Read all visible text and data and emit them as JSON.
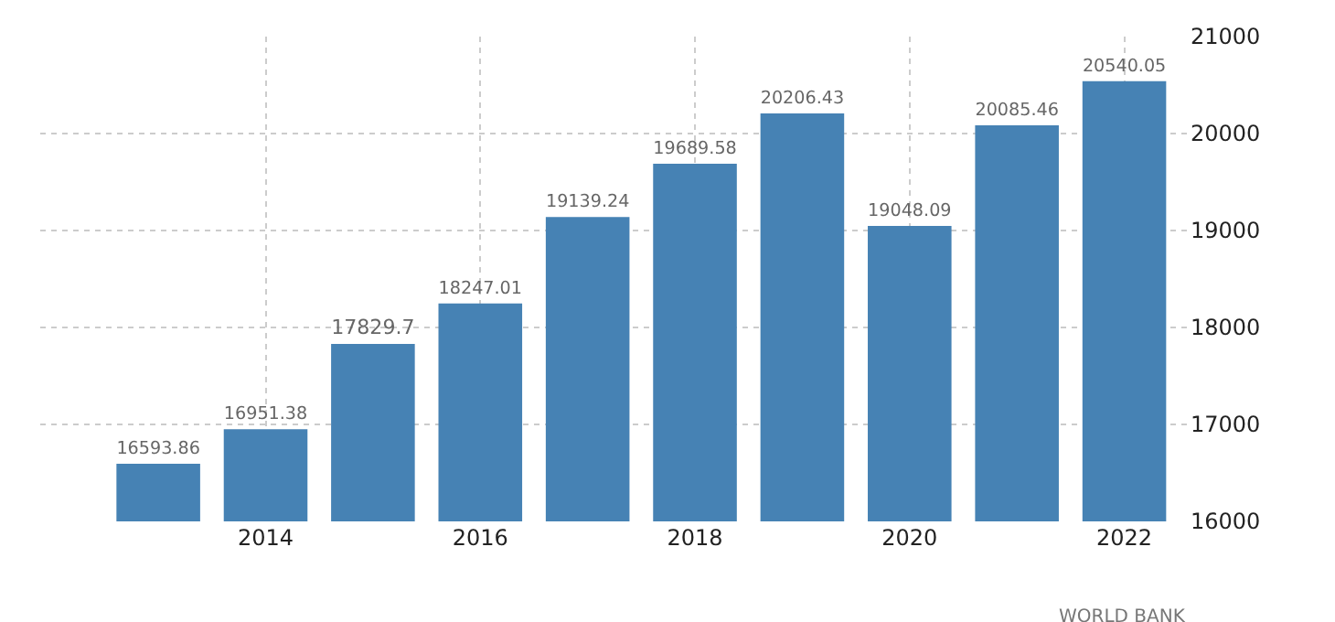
{
  "chart_data": {
    "type": "bar",
    "x": [
      2013,
      2014,
      2015,
      2016,
      2017,
      2018,
      2019,
      2020,
      2021,
      2022
    ],
    "values": [
      16593.86,
      16951.38,
      17829.7,
      18247.01,
      19139.24,
      19689.58,
      20206.43,
      19048.09,
      20085.46,
      20540.05
    ],
    "color": "#4682b4",
    "data_labels": true,
    "xlim": [
      2011.9,
      2022.6
    ],
    "xticks": [
      2014,
      2016,
      2018,
      2020,
      2022
    ],
    "ylim": [
      16000,
      21000
    ],
    "yticks": [
      16000,
      17000,
      18000,
      19000,
      20000,
      21000
    ],
    "grid": true,
    "annotations": [
      "WORLD BANK"
    ]
  }
}
